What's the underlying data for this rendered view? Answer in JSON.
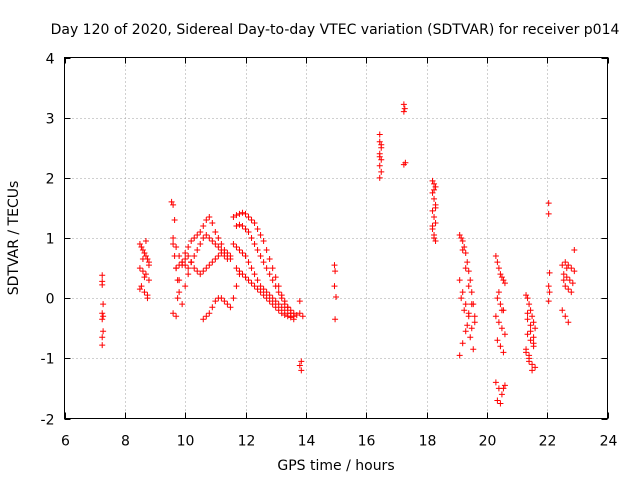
{
  "chart_data": {
    "type": "scatter",
    "title": "Day 120 of 2020, Sidereal Day-to-day VTEC variation (SDTVAR) for receiver p014",
    "xlabel": "GPS time / hours",
    "ylabel": "SDTVAR / TECUs",
    "xlim": [
      6,
      24
    ],
    "ylim": [
      -2,
      4
    ],
    "xticks": [
      6,
      8,
      10,
      12,
      14,
      16,
      18,
      20,
      22,
      24
    ],
    "yticks": [
      -2,
      -1,
      0,
      1,
      2,
      3,
      4
    ],
    "grid": true,
    "marker": "plus",
    "color": "#ff0000",
    "series": [
      {
        "name": "sdtvar",
        "x": [
          7.25,
          7.25,
          7.25,
          7.28,
          7.25,
          7.25,
          7.28,
          7.25,
          7.25,
          7.28,
          8.5,
          8.55,
          8.6,
          8.65,
          8.7,
          8.75,
          8.8,
          8.5,
          8.6,
          8.7,
          8.8,
          8.55,
          8.65,
          8.75,
          8.8,
          8.7,
          8.6,
          8.5,
          8.65,
          8.75,
          9.55,
          9.6,
          9.65,
          9.6,
          9.7,
          9.75,
          9.8,
          9.9,
          10.0,
          10.1,
          10.2,
          10.3,
          10.4,
          10.5,
          10.6,
          10.7,
          10.8,
          10.9,
          11.0,
          11.1,
          11.2,
          11.3,
          11.4,
          11.5,
          9.6,
          9.7,
          9.8,
          9.9,
          10.0,
          10.1,
          10.2,
          10.3,
          10.4,
          10.5,
          10.6,
          10.7,
          10.8,
          10.9,
          11.0,
          11.1,
          11.2,
          11.3,
          11.4,
          11.5,
          9.7,
          9.8,
          9.9,
          10.0,
          10.1,
          10.2,
          10.3,
          10.4,
          10.5,
          10.6,
          10.7,
          10.8,
          10.9,
          11.0,
          11.1,
          11.2,
          11.3,
          11.4,
          9.6,
          9.65,
          9.7,
          9.75,
          9.8,
          9.9,
          10.0,
          10.1,
          10.2,
          10.6,
          10.7,
          10.8,
          10.9,
          11.0,
          11.1,
          11.2,
          11.3,
          11.4,
          11.5,
          11.6,
          11.7,
          11.8,
          11.6,
          11.7,
          11.8,
          11.9,
          12.0,
          12.1,
          12.2,
          12.3,
          12.4,
          12.5,
          12.6,
          12.7,
          12.8,
          12.9,
          13.0,
          13.1,
          13.2,
          13.3,
          13.4,
          13.5,
          13.6,
          11.7,
          11.8,
          11.9,
          12.0,
          12.1,
          12.2,
          12.3,
          12.4,
          12.5,
          12.6,
          12.7,
          12.8,
          12.9,
          13.0,
          13.1,
          13.2,
          13.3,
          13.4,
          13.5,
          13.6,
          13.7,
          11.6,
          11.7,
          11.8,
          11.9,
          12.0,
          12.1,
          12.2,
          12.3,
          12.4,
          12.5,
          12.6,
          12.7,
          12.8,
          12.9,
          13.0,
          13.1,
          13.2,
          13.3,
          13.4,
          13.5,
          13.6,
          11.7,
          11.8,
          11.9,
          12.0,
          12.1,
          12.2,
          12.3,
          12.4,
          12.5,
          12.6,
          12.7,
          12.8,
          12.9,
          13.0,
          13.1,
          13.2,
          13.3,
          13.4,
          13.5,
          13.8,
          13.85,
          13.8,
          13.85,
          13.8,
          13.9,
          14.95,
          14.97,
          14.95,
          15.0,
          14.97,
          16.45,
          16.45,
          16.5,
          16.45,
          16.5,
          16.45,
          16.5,
          16.45,
          16.5,
          16.45,
          17.25,
          17.28,
          17.25,
          17.3,
          17.25,
          18.2,
          18.25,
          18.3,
          18.2,
          18.25,
          18.3,
          18.2,
          18.25,
          18.3,
          18.2,
          18.25,
          18.3,
          18.25,
          18.3,
          18.2,
          18.25,
          19.1,
          19.15,
          19.2,
          19.25,
          19.3,
          19.35,
          19.4,
          19.45,
          19.5,
          19.55,
          19.6,
          19.1,
          19.2,
          19.3,
          19.4,
          19.5,
          19.2,
          19.3,
          19.4,
          19.5,
          19.6,
          19.15,
          19.25,
          19.35,
          19.45,
          19.55,
          19.1,
          19.2,
          19.3,
          19.4,
          20.3,
          20.35,
          20.4,
          20.45,
          20.5,
          20.55,
          20.6,
          20.35,
          20.45,
          20.55,
          20.3,
          20.4,
          20.5,
          20.6,
          20.35,
          20.45,
          20.55,
          20.3,
          20.4,
          20.5,
          20.35,
          20.45,
          20.55,
          20.6,
          20.4,
          20.5,
          21.3,
          21.35,
          21.4,
          21.45,
          21.5,
          21.55,
          21.6,
          21.35,
          21.45,
          21.55,
          21.3,
          21.4,
          21.5,
          21.6,
          21.35,
          21.45,
          21.55,
          21.3,
          21.4,
          21.5,
          21.35,
          21.45,
          21.55,
          21.4,
          22.05,
          22.05,
          22.08,
          22.05,
          22.08,
          22.05,
          22.5,
          22.6,
          22.7,
          22.8,
          22.9,
          22.55,
          22.65,
          22.75,
          22.85,
          22.9,
          22.6,
          22.7,
          22.8,
          22.5,
          22.6,
          22.7,
          22.55,
          22.65
        ],
        "y": [
          0.38,
          0.28,
          0.22,
          -0.1,
          -0.25,
          -0.35,
          -0.55,
          -0.65,
          -0.78,
          -0.3,
          0.9,
          0.85,
          0.8,
          0.75,
          0.7,
          0.65,
          0.6,
          0.5,
          0.45,
          0.4,
          0.3,
          0.2,
          0.1,
          0.0,
          0.55,
          0.95,
          0.65,
          0.15,
          0.35,
          0.05,
          1.6,
          1.55,
          1.3,
          -0.25,
          -0.3,
          0.0,
          0.3,
          0.55,
          0.75,
          0.85,
          0.95,
          1.0,
          1.05,
          1.1,
          1.2,
          1.3,
          1.35,
          1.25,
          1.1,
          1.0,
          0.9,
          0.8,
          0.75,
          0.7,
          1.0,
          0.85,
          0.7,
          0.6,
          0.55,
          0.5,
          0.6,
          0.7,
          0.8,
          0.9,
          1.0,
          1.05,
          1.0,
          0.95,
          0.9,
          0.85,
          0.8,
          0.75,
          0.7,
          0.65,
          0.5,
          0.55,
          0.6,
          0.65,
          0.7,
          0.6,
          0.5,
          0.45,
          0.4,
          0.45,
          0.5,
          0.55,
          0.6,
          0.65,
          0.7,
          0.75,
          0.7,
          0.65,
          0.9,
          0.7,
          0.5,
          0.3,
          0.1,
          -0.1,
          0.2,
          0.4,
          0.6,
          -0.35,
          -0.3,
          -0.25,
          -0.15,
          -0.05,
          0.0,
          0.0,
          -0.05,
          -0.1,
          -0.15,
          0.0,
          0.2,
          0.4,
          1.35,
          1.38,
          1.4,
          1.42,
          1.4,
          1.35,
          1.3,
          1.25,
          1.15,
          1.05,
          0.95,
          0.8,
          0.65,
          0.5,
          0.35,
          0.2,
          0.05,
          -0.05,
          -0.15,
          -0.25,
          -0.3,
          1.2,
          1.22,
          1.2,
          1.15,
          1.1,
          1.0,
          0.9,
          0.8,
          0.7,
          0.6,
          0.5,
          0.4,
          0.3,
          0.2,
          0.1,
          0.0,
          -0.1,
          -0.15,
          -0.2,
          -0.25,
          -0.28,
          0.9,
          0.85,
          0.8,
          0.75,
          0.7,
          0.6,
          0.5,
          0.4,
          0.3,
          0.2,
          0.15,
          0.1,
          0.05,
          0.0,
          -0.05,
          -0.1,
          -0.15,
          -0.2,
          -0.25,
          -0.3,
          -0.35,
          0.5,
          0.45,
          0.4,
          0.35,
          0.3,
          0.25,
          0.2,
          0.15,
          0.1,
          0.05,
          0.0,
          -0.05,
          -0.1,
          -0.15,
          -0.2,
          -0.25,
          -0.28,
          -0.3,
          -0.32,
          -0.05,
          -1.05,
          -1.12,
          -1.2,
          -0.25,
          -0.3,
          0.55,
          0.45,
          0.2,
          0.02,
          -0.35,
          2.72,
          2.6,
          2.55,
          2.4,
          2.3,
          2.2,
          2.1,
          2.0,
          2.5,
          2.35,
          3.22,
          3.15,
          3.1,
          2.25,
          2.22,
          1.95,
          1.9,
          1.85,
          1.75,
          1.65,
          1.55,
          1.45,
          1.35,
          1.25,
          1.15,
          1.05,
          0.95,
          1.8,
          1.5,
          1.2,
          1.0,
          1.05,
          1.0,
          0.95,
          0.85,
          0.75,
          0.6,
          0.45,
          0.3,
          0.1,
          -0.1,
          -0.3,
          0.3,
          0.1,
          -0.1,
          -0.3,
          -0.5,
          0.8,
          0.5,
          0.2,
          -0.1,
          -0.4,
          0.0,
          -0.2,
          -0.45,
          -0.65,
          -0.85,
          -0.95,
          -0.75,
          -0.55,
          -0.25,
          0.7,
          0.6,
          0.5,
          0.4,
          0.35,
          0.3,
          0.25,
          0.0,
          -0.1,
          -0.2,
          -0.3,
          -0.4,
          -0.5,
          -0.6,
          -0.7,
          -0.8,
          -0.9,
          -1.4,
          -1.5,
          -1.6,
          -1.7,
          -1.75,
          -1.5,
          -1.45,
          0.1,
          -0.2,
          0.05,
          0.0,
          -0.1,
          -0.2,
          -0.3,
          -0.4,
          -0.5,
          -0.6,
          -0.7,
          -0.8,
          -0.9,
          -1.0,
          -1.1,
          -1.15,
          -0.25,
          -0.45,
          -0.65,
          -0.85,
          -1.05,
          -1.2,
          -0.35,
          -0.55,
          -0.75,
          -0.95,
          1.58,
          1.4,
          0.42,
          0.2,
          0.1,
          -0.05,
          0.55,
          0.6,
          0.55,
          0.5,
          0.45,
          0.4,
          0.35,
          0.3,
          0.25,
          0.8,
          0.2,
          0.15,
          0.1,
          -0.2,
          -0.3,
          -0.4,
          0.3,
          0.5
        ]
      }
    ]
  }
}
